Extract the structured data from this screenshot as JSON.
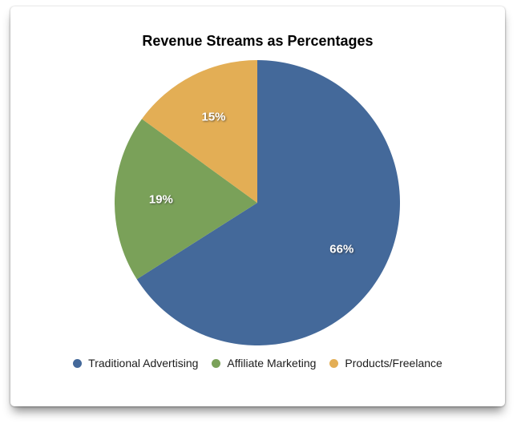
{
  "chart_data": {
    "type": "pie",
    "title": "Revenue Streams as Percentages",
    "slices": [
      {
        "label": "Traditional Advertising",
        "value": 66,
        "display": "66%",
        "color": "#44699A"
      },
      {
        "label": "Affiliate Marketing",
        "value": 19,
        "display": "19%",
        "color": "#7AA159"
      },
      {
        "label": "Products/Freelance",
        "value": 15,
        "display": "15%",
        "color": "#E3AE55"
      }
    ],
    "total": 100,
    "start_angle_deg": 0,
    "direction": "clockwise",
    "legend_position": "bottom",
    "slice_label_color": "#FFFFFF",
    "title_color": "#000000",
    "legend_text_color": "#1C1C1C",
    "background_color": "#FFFFFF"
  }
}
